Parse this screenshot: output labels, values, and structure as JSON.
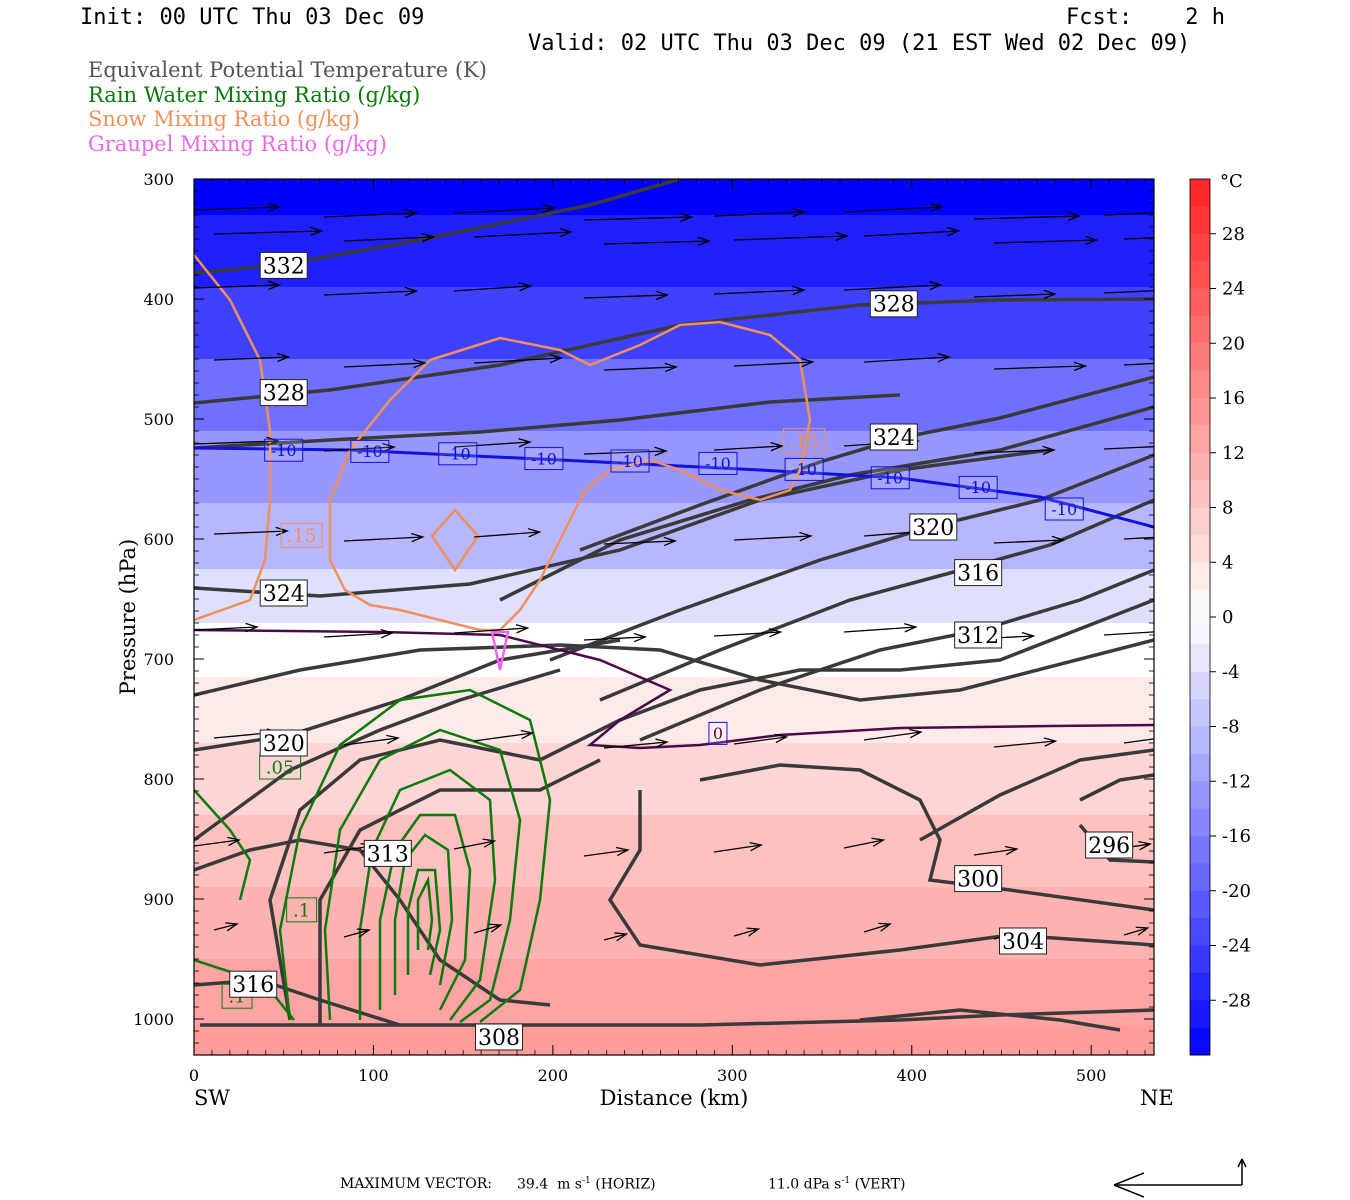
{
  "header": {
    "init": "Init: 00 UTC Thu 03 Dec 09",
    "fcst": "Fcst:    2 h",
    "valid": "Valid: 02 UTC Thu 03 Dec 09 (21 EST Wed 02 Dec 09)"
  },
  "legend": [
    {
      "text": "Equivalent Potential Temperature (K)",
      "color": "#555555"
    },
    {
      "text": "Rain Water Mixing Ratio (g/kg)",
      "color": "#0a7a0a"
    },
    {
      "text": "Snow Mixing Ratio (g/kg)",
      "color": "#f0905a"
    },
    {
      "text": "Graupel Mixing Ratio (g/kg)",
      "color": "#ee66ee"
    }
  ],
  "footer": {
    "label": "MAXIMUM VECTOR:",
    "horiz_value": "39.4",
    "horiz_unit": "m s",
    "horiz_exp": "-1",
    "horiz_tag": "(HORIZ)",
    "vert_value": "11.0",
    "vert_unit": "dPa s",
    "vert_exp": "-1",
    "vert_tag": "(VERT)"
  },
  "chart_data": {
    "type": "cross-section",
    "xlabel": "Distance (km)",
    "ylabel": "Pressure (hPa)",
    "xlim": [
      0,
      535
    ],
    "ylim": [
      1030,
      300
    ],
    "x_ticks": [
      0,
      100,
      200,
      300,
      400,
      500
    ],
    "y_ticks": [
      300,
      400,
      500,
      600,
      700,
      800,
      900,
      1000
    ],
    "left_end_label": "SW",
    "right_end_label": "NE",
    "colorbar": {
      "unit": "°C",
      "ticks": [
        28,
        24,
        20,
        16,
        12,
        8,
        4,
        0,
        -4,
        -8,
        -12,
        -16,
        -20,
        -24,
        -28
      ],
      "range": [
        -32,
        32
      ],
      "cold_color": "#0000ff",
      "neutral_color": "#ffffff",
      "warm_color": "#ff2020"
    },
    "temperature_field": [
      {
        "p": 300,
        "t": -32
      },
      {
        "p": 360,
        "t": -28
      },
      {
        "p": 420,
        "t": -24
      },
      {
        "p": 480,
        "t": -18
      },
      {
        "p": 540,
        "t": -13
      },
      {
        "p": 600,
        "t": -9
      },
      {
        "p": 650,
        "t": -4
      },
      {
        "p": 690,
        "t": 0
      },
      {
        "p": 740,
        "t": 3
      },
      {
        "p": 800,
        "t": 6
      },
      {
        "p": 860,
        "t": 9
      },
      {
        "p": 920,
        "t": 11
      },
      {
        "p": 980,
        "t": 13
      },
      {
        "p": 1030,
        "t": 14
      }
    ],
    "theta_e_labels": [
      {
        "text": "332",
        "x": 50,
        "p": 372
      },
      {
        "text": "328",
        "x": 390,
        "p": 404
      },
      {
        "text": "328",
        "x": 50,
        "p": 478
      },
      {
        "text": "324",
        "x": 390,
        "p": 515
      },
      {
        "text": "320",
        "x": 412,
        "p": 590
      },
      {
        "text": "316",
        "x": 437,
        "p": 628
      },
      {
        "text": "324",
        "x": 50,
        "p": 645
      },
      {
        "text": "312",
        "x": 437,
        "p": 680
      },
      {
        "text": "320",
        "x": 50,
        "p": 770
      },
      {
        "text": "313",
        "x": 108,
        "p": 862
      },
      {
        "text": "300",
        "x": 437,
        "p": 883
      },
      {
        "text": "296",
        "x": 510,
        "p": 855
      },
      {
        "text": "304",
        "x": 462,
        "p": 935
      },
      {
        "text": "316",
        "x": 33,
        "p": 971
      },
      {
        "text": "308",
        "x": 170,
        "p": 1015
      }
    ],
    "isotherm_labels": [
      {
        "text": "-10",
        "x": 50,
        "p": 526
      },
      {
        "text": "-10",
        "x": 98,
        "p": 527
      },
      {
        "text": "-10",
        "x": 147,
        "p": 529
      },
      {
        "text": "-10",
        "x": 195,
        "p": 533
      },
      {
        "text": "-10",
        "x": 243,
        "p": 535
      },
      {
        "text": "-10",
        "x": 292,
        "p": 537
      },
      {
        "text": "-10",
        "x": 340,
        "p": 542
      },
      {
        "text": "-10",
        "x": 388,
        "p": 549
      },
      {
        "text": "-10",
        "x": 437,
        "p": 557
      },
      {
        "text": "-10",
        "x": 485,
        "p": 575
      },
      {
        "text": "0",
        "x": 292,
        "p": 762
      }
    ],
    "snow_labels": [
      {
        "text": ".15",
        "x": 340,
        "p": 518
      },
      {
        "text": ".15",
        "x": 60,
        "p": 597
      }
    ],
    "rain_labels": [
      {
        "text": ".05",
        "x": 48,
        "p": 790
      },
      {
        "text": ".1",
        "x": 60,
        "p": 909
      },
      {
        "text": ".1",
        "x": 24,
        "p": 981
      }
    ]
  }
}
